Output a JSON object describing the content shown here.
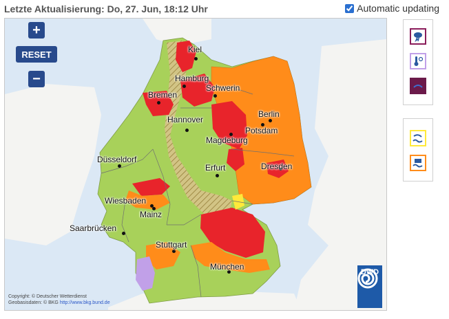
{
  "header": {
    "title": "Letzte Aktualisierung: Do, 27. Jun, 18:12 Uhr",
    "auto_update_label": "Automatic updating",
    "auto_update_checked": true
  },
  "map_controls": {
    "zoom_in": "+",
    "reset": "RESET",
    "zoom_out": "−"
  },
  "cities": [
    {
      "name": "Kiel"
    },
    {
      "name": "Hamburg"
    },
    {
      "name": "Schwerin"
    },
    {
      "name": "Bremen"
    },
    {
      "name": "Berlin"
    },
    {
      "name": "Hannover"
    },
    {
      "name": "Potsdam"
    },
    {
      "name": "Magdeburg"
    },
    {
      "name": "Düsseldorf"
    },
    {
      "name": "Erfurt"
    },
    {
      "name": "Dresden"
    },
    {
      "name": "Wiesbaden"
    },
    {
      "name": "Mainz"
    },
    {
      "name": "Saarbrücken"
    },
    {
      "name": "Stuttgart"
    },
    {
      "name": "München"
    }
  ],
  "copyright": {
    "line1": "Copyright: © Deutscher Wetterdienst",
    "line2_prefix": "Geobasisdaten: © BKG",
    "line2_link": "http://www.bkg.bund.de"
  },
  "logo": {
    "text": "DWD"
  },
  "colors": {
    "no_warning": "#a8d15a",
    "level1": "#ffe93a",
    "level2": "#ff8c1a",
    "level3": "#e8242b",
    "heat": "#c1a0e8",
    "hatch": "#c9a24a",
    "water": "#dbe8f5",
    "brand": "#284a8c"
  },
  "legend_panels": {
    "panel1": [
      {
        "icon": "thunderstorm-warning-icon",
        "border": "#8a1c5a"
      },
      {
        "icon": "temperature-warning-icon",
        "border": "#c1a0e8"
      },
      {
        "icon": "uv-warning-icon",
        "border": "#6b1a4a"
      }
    ],
    "panel2": [
      {
        "icon": "coastal-wave-warning-icon",
        "border": "#ffe93a"
      },
      {
        "icon": "flood-warning-icon",
        "border": "#ff8c1a"
      }
    ]
  }
}
